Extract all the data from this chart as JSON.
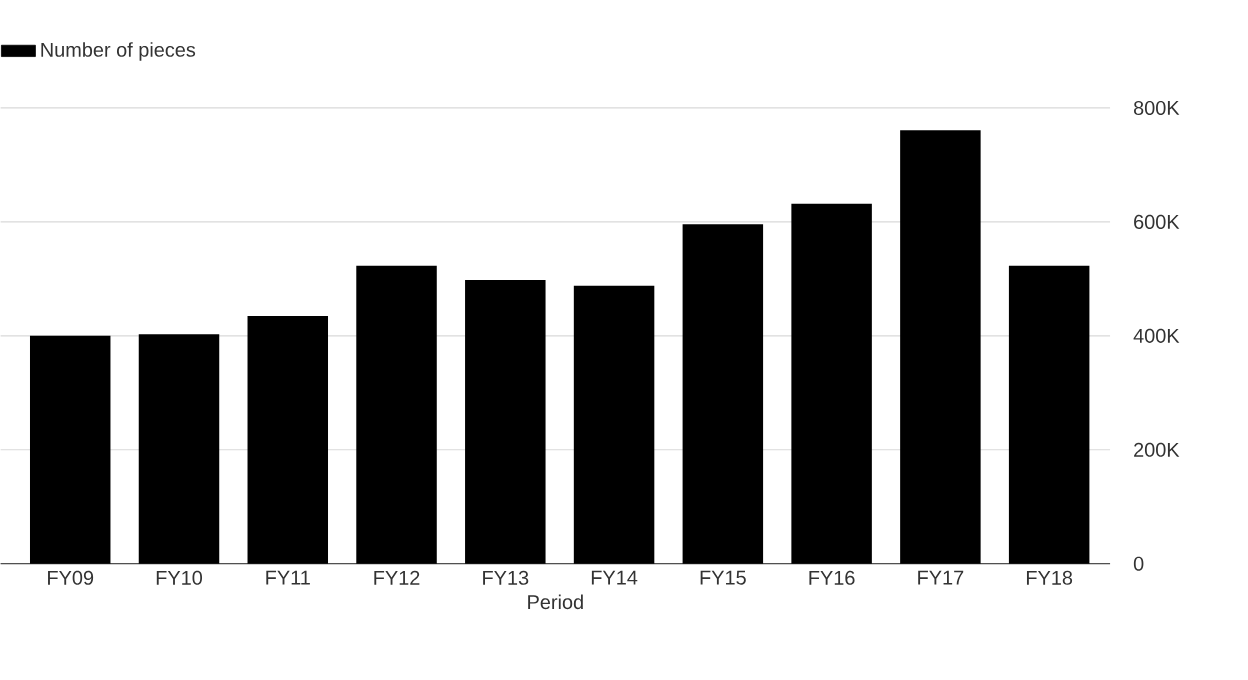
{
  "chart_data": {
    "type": "bar",
    "xlabel": "Period",
    "categories": [
      "FY09",
      "FY10",
      "FY11",
      "FY12",
      "FY13",
      "FY14",
      "FY15",
      "FY16",
      "FY17",
      "FY18"
    ],
    "series": [
      {
        "name": "Number of pieces",
        "color": "#000000",
        "values": [
          400000,
          403000,
          435000,
          523000,
          498000,
          488000,
          596000,
          632000,
          761000,
          523000
        ]
      }
    ],
    "ylim": [
      0,
      800000
    ],
    "yticks": [
      0,
      {
        "value": 200000,
        "label": "200K"
      },
      {
        "value": 400000,
        "label": "400K"
      },
      {
        "value": 600000,
        "label": "600K"
      },
      {
        "value": 800000,
        "label": "800K"
      }
    ],
    "grid": "y",
    "legend": "top left"
  }
}
